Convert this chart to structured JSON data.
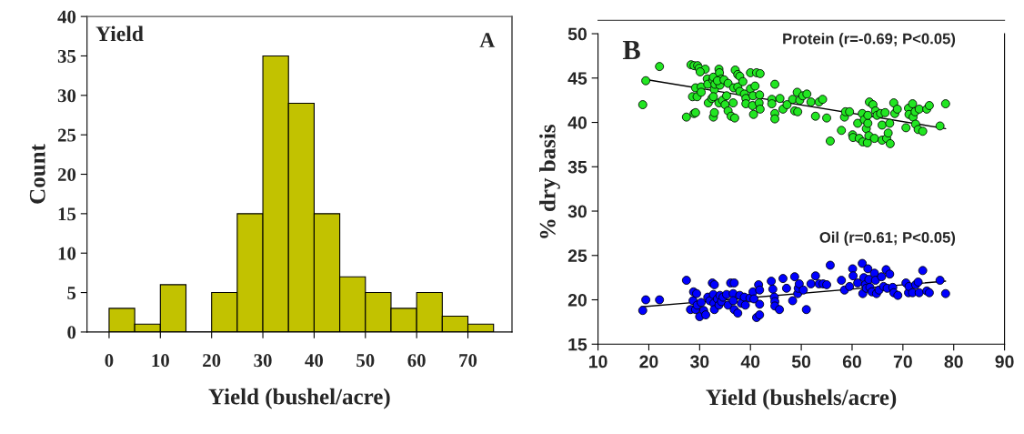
{
  "chart_data": [
    {
      "type": "histogram",
      "xlabel": "Yield (bushel/acre)",
      "ylabel": "Count",
      "annotations": [
        "Yield",
        "A"
      ],
      "bins": [
        0,
        5,
        10,
        15,
        20,
        25,
        30,
        35,
        40,
        45,
        50,
        55,
        60,
        65,
        70,
        75
      ],
      "values": [
        3,
        1,
        6,
        0,
        5,
        15,
        35,
        29,
        15,
        7,
        5,
        3,
        5,
        2,
        1
      ],
      "color": "#c2c200",
      "xlim": [
        -4.3,
        78.6
      ],
      "xticks": [
        0,
        10,
        20,
        30,
        40,
        50,
        60,
        70
      ],
      "ylim": [
        0,
        40
      ],
      "yticks": [
        0,
        5,
        10,
        15,
        20,
        25,
        30,
        35,
        40
      ],
      "grid": false,
      "legend": false
    },
    {
      "type": "scatter",
      "xlabel": "Yield (bushels/acre)",
      "ylabel": "% dry basis",
      "annotations": [
        "B"
      ],
      "grid": false,
      "legend": false,
      "xlim": [
        10,
        90
      ],
      "xticks": [
        10,
        20,
        30,
        40,
        50,
        60,
        70,
        80,
        90
      ],
      "ylim": [
        15,
        51.5
      ],
      "yticks": [
        15,
        20,
        25,
        30,
        35,
        40,
        45,
        50
      ],
      "series": [
        {
          "name": "Protein (r=-0.69; P<0.05)",
          "color": "#22e622",
          "marker": "circle",
          "x": [
            18.8,
            19.4,
            22.1,
            28.3,
            28.9,
            29.6,
            29.9,
            31.1,
            27.4,
            28.9,
            29.2,
            28.6,
            29.5,
            29.2,
            30.3,
            30.3,
            30.1,
            31.5,
            31.6,
            31.7,
            32.4,
            32.6,
            32.7,
            32.9,
            33.0,
            32.7,
            32.9,
            32.7,
            33.8,
            33.9,
            34.0,
            34.3,
            33.5,
            34.8,
            33.8,
            34.5,
            35.3,
            35.6,
            35.0,
            35.6,
            36.2,
            36.9,
            36.6,
            37.0,
            37.5,
            37.9,
            36.7,
            37.5,
            38.5,
            37.9,
            38.8,
            39.1,
            39.1,
            40.0,
            41.2,
            41.9,
            40.0,
            40.9,
            40.5,
            40.4,
            40.6,
            41.8,
            41.7,
            41.9,
            44.8,
            44.2,
            44.2,
            44.8,
            44.8,
            45.8,
            46.4,
            47.2,
            48.3,
            48.7,
            49.3,
            49.2,
            49.7,
            50.3,
            51.1,
            51.9,
            52.8,
            53.5,
            54.2,
            55.0,
            55.7,
            57.9,
            58.5,
            58.7,
            59.5,
            60.1,
            60.2,
            61.1,
            61.4,
            62.0,
            62.1,
            62.4,
            62.8,
            63.0,
            63.1,
            63.1,
            63.4,
            64.1,
            63.3,
            64.4,
            64.6,
            64.9,
            65.6,
            65.9,
            65.9,
            66.5,
            66.8,
            67.1,
            67.4,
            67.5,
            68.2,
            68.4,
            68.9,
            70.6,
            71.1,
            71.2,
            71.9,
            72.0,
            72.5,
            72.4,
            73.2,
            73.0,
            73.9,
            74.7,
            75.2,
            77.3,
            78.4
          ],
          "values": [
            42.0,
            44.7,
            46.3,
            46.5,
            46.4,
            46.4,
            46.1,
            46.0,
            40.6,
            41.0,
            41.1,
            42.9,
            42.9,
            43.9,
            44.0,
            43.4,
            45.7,
            44.9,
            44.3,
            42.2,
            42.7,
            44.8,
            45.1,
            43.7,
            44.3,
            40.6,
            41.1,
            42.9,
            46.0,
            45.6,
            44.2,
            44.9,
            44.7,
            44.8,
            42.2,
            42.5,
            43.0,
            44.4,
            42.0,
            41.3,
            40.7,
            40.5,
            42.2,
            45.9,
            45.4,
            45.2,
            43.9,
            44.0,
            44.6,
            43.5,
            43.2,
            42.7,
            42.1,
            45.6,
            45.6,
            45.5,
            43.8,
            44.1,
            43.0,
            41.9,
            40.9,
            43.1,
            42.2,
            41.5,
            44.3,
            42.6,
            42.1,
            41.0,
            40.4,
            42.7,
            41.5,
            42.0,
            42.6,
            41.3,
            41.2,
            43.4,
            42.5,
            43.0,
            43.2,
            42.3,
            40.7,
            42.3,
            42.6,
            40.5,
            37.9,
            39.1,
            40.6,
            41.2,
            41.2,
            38.6,
            38.3,
            39.9,
            38.2,
            41.0,
            37.8,
            40.3,
            39.3,
            37.7,
            39.9,
            40.8,
            42.3,
            42.0,
            38.5,
            38.2,
            41.3,
            40.8,
            41.0,
            38.0,
            39.7,
            41.1,
            38.2,
            38.8,
            39.9,
            37.6,
            42.2,
            41.0,
            41.5,
            39.4,
            41.6,
            40.9,
            42.1,
            40.6,
            39.8,
            41.2,
            41.5,
            39.2,
            39.0,
            41.5,
            41.9,
            39.6,
            42.1
          ]
        },
        {
          "name": "Oil (r=0.61; P<0.05)",
          "color": "#0000ff",
          "marker": "circle",
          "x": [
            18.8,
            19.4,
            22.1,
            27.4,
            28.2,
            28.7,
            28.8,
            29.4,
            29.2,
            29.5,
            30.0,
            30.3,
            30.8,
            31.2,
            31.6,
            32.0,
            32.5,
            32.9,
            32.7,
            32.8,
            32.9,
            33.5,
            33.8,
            34.0,
            34.3,
            34.6,
            35.3,
            35.6,
            36.1,
            36.8,
            36.6,
            36.6,
            36.8,
            37.5,
            37.9,
            38.2,
            38.8,
            39.0,
            39.9,
            40.5,
            40.7,
            41.2,
            41.8,
            41.8,
            41.6,
            41.8,
            44.1,
            44.4,
            44.7,
            44.8,
            44.8,
            45.7,
            46.4,
            47.1,
            48.3,
            48.7,
            49.3,
            49.4,
            49.6,
            50.4,
            51.0,
            51.9,
            52.8,
            53.5,
            54.3,
            55.0,
            55.7,
            57.9,
            58.5,
            59.5,
            60.1,
            60.2,
            61.1,
            62.0,
            62.1,
            62.3,
            62.6,
            62.8,
            63.1,
            63.3,
            63.5,
            63.9,
            64.4,
            64.6,
            64.8,
            65.3,
            65.8,
            66.2,
            66.7,
            66.9,
            67.4,
            68.0,
            68.2,
            69.0,
            70.6,
            71.1,
            71.2,
            71.9,
            72.5,
            73.0,
            73.2,
            73.9,
            74.7,
            75.2,
            77.3,
            78.4
          ],
          "values": [
            18.8,
            20.0,
            20.0,
            22.2,
            18.9,
            19.9,
            20.9,
            20.7,
            18.9,
            19.4,
            18.1,
            19.7,
            18.8,
            18.3,
            20.3,
            19.9,
            21.9,
            21.7,
            20.6,
            19.6,
            18.9,
            20.1,
            19.4,
            20.5,
            19.8,
            20.3,
            20.6,
            19.4,
            21.9,
            21.9,
            20.7,
            19.9,
            18.9,
            18.5,
            20.5,
            19.6,
            20.3,
            19.4,
            20.2,
            20.9,
            20.1,
            18.0,
            18.3,
            19.5,
            21.7,
            21.1,
            22.1,
            21.2,
            20.3,
            19.8,
            19.3,
            18.9,
            22.4,
            21.3,
            19.9,
            22.6,
            20.7,
            21.3,
            21.8,
            21.1,
            18.9,
            21.8,
            22.7,
            21.8,
            21.8,
            21.7,
            23.9,
            22.2,
            21.1,
            21.5,
            23.5,
            22.7,
            21.9,
            24.1,
            20.7,
            22.5,
            21.7,
            21.3,
            23.5,
            22.3,
            21.4,
            20.9,
            23.0,
            22.2,
            20.7,
            21.1,
            22.6,
            21.5,
            23.4,
            21.3,
            22.9,
            21.4,
            20.8,
            20.5,
            21.9,
            20.8,
            21.5,
            20.8,
            21.7,
            22.0,
            20.8,
            23.3,
            21.0,
            20.8,
            22.2,
            20.7
          ]
        },
        {
          "type": "line",
          "color": "#000000",
          "marker": "none",
          "x": [
            19.8,
            78.4
          ],
          "values": [
            44.8,
            39.3
          ]
        },
        {
          "type": "line",
          "color": "#000000",
          "marker": "none",
          "x": [
            18.5,
            78.4
          ],
          "values": [
            19.2,
            22.1
          ]
        }
      ]
    }
  ]
}
